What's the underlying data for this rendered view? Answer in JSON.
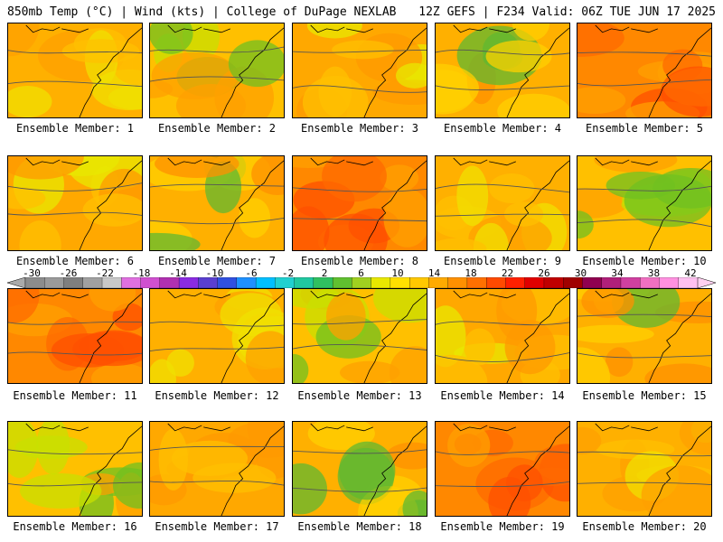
{
  "header": {
    "left": "850mb Temp (°C) | Wind (kts) | College of DuPage NEXLAB",
    "right": "12Z GEFS | F234 Valid: 06Z TUE JUN 17 2025"
  },
  "colorbar": {
    "tick_labels": [
      "-30",
      "-26",
      "-22",
      "-18",
      "-14",
      "-10",
      "-6",
      "-2",
      "2",
      "6",
      "10",
      "14",
      "18",
      "22",
      "26",
      "30",
      "34",
      "38",
      "42"
    ],
    "colors": [
      "#8c8c8c",
      "#9a9a9a",
      "#7f7f7f",
      "#a0a0a0",
      "#c8c8c8",
      "#e070e0",
      "#d050d0",
      "#b030b0",
      "#8a2be2",
      "#5a3fd0",
      "#3050e0",
      "#1e90ff",
      "#00bfff",
      "#20d0d0",
      "#20c8a0",
      "#30c060",
      "#60c030",
      "#a0d020",
      "#e8e800",
      "#ffe000",
      "#ffc800",
      "#ffaa00",
      "#ff9000",
      "#ff7000",
      "#ff4a00",
      "#ff2000",
      "#e00000",
      "#c00000",
      "#a00000",
      "#900050",
      "#b0207a",
      "#d040a0",
      "#f070c0",
      "#ff90e0",
      "#ffc0f0"
    ]
  },
  "members": [
    {
      "label": "Ensemble Member: 1"
    },
    {
      "label": "Ensemble Member: 2"
    },
    {
      "label": "Ensemble Member: 3"
    },
    {
      "label": "Ensemble Member: 4"
    },
    {
      "label": "Ensemble Member: 5"
    },
    {
      "label": "Ensemble Member: 6"
    },
    {
      "label": "Ensemble Member: 7"
    },
    {
      "label": "Ensemble Member: 8"
    },
    {
      "label": "Ensemble Member: 9"
    },
    {
      "label": "Ensemble Member: 10"
    },
    {
      "label": "Ensemble Member: 11"
    },
    {
      "label": "Ensemble Member: 12"
    },
    {
      "label": "Ensemble Member: 13"
    },
    {
      "label": "Ensemble Member: 14"
    },
    {
      "label": "Ensemble Member: 15"
    },
    {
      "label": "Ensemble Member: 16"
    },
    {
      "label": "Ensemble Member: 17"
    },
    {
      "label": "Ensemble Member: 18"
    },
    {
      "label": "Ensemble Member: 19"
    },
    {
      "label": "Ensemble Member: 20"
    }
  ]
}
